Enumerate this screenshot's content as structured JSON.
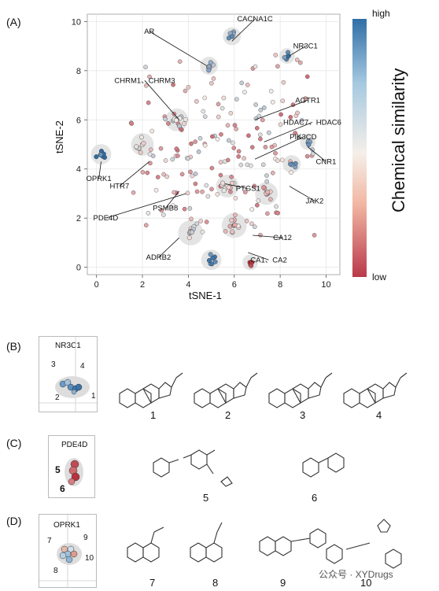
{
  "panels": {
    "a": "(A)",
    "b": "(B)",
    "c": "(C)",
    "d": "(D)"
  },
  "colors": {
    "low": "#b2182b",
    "mid": "#f7f7f7",
    "high": "#2166ac",
    "cluster_bg": "#d9d9d9",
    "grid": "#e6e6e6"
  },
  "chart_data": {
    "type": "scatter",
    "xlabel": "tSNE-1",
    "ylabel": "tSNE-2",
    "xlim": [
      -0.4,
      10.6
    ],
    "ylim": [
      -0.3,
      10.3
    ],
    "xticks": [
      "0",
      "2",
      "4",
      "6",
      "8",
      "10"
    ],
    "yticks": [
      "0",
      "2",
      "4",
      "6",
      "8",
      "10"
    ],
    "grid": true,
    "colorbar": {
      "title": "Chemical similarity",
      "high_label": "high",
      "low_label": "low"
    },
    "target_labels": [
      {
        "label": "CACNA1C",
        "x": 6.9,
        "y": 10.1,
        "px": 5.9,
        "py": 9.2
      },
      {
        "label": "AR",
        "x": 2.3,
        "y": 9.6,
        "px": 4.8,
        "py": 8.2
      },
      {
        "label": "NR3C1",
        "x": 9.1,
        "y": 9.0,
        "px": 8.4,
        "py": 8.6
      },
      {
        "label": "CHRM1、CHRM3",
        "x": 2.1,
        "y": 7.6,
        "px": 3.6,
        "py": 6.0
      },
      {
        "label": "AGTR1",
        "x": 9.2,
        "y": 6.8,
        "px": 6.9,
        "py": 6.0
      },
      {
        "label": "HDAC7、HDAC6",
        "x": 9.4,
        "y": 5.9,
        "px": 7.3,
        "py": 5.1
      },
      {
        "label": "PIK3CD",
        "x": 9.0,
        "y": 5.3,
        "px": 6.9,
        "py": 4.4
      },
      {
        "label": "CNR1",
        "x": 10.0,
        "y": 4.3,
        "px": 9.2,
        "py": 4.9
      },
      {
        "label": "OPRK1",
        "x": 0.1,
        "y": 3.6,
        "px": 0.2,
        "py": 4.3
      },
      {
        "label": "HTR7",
        "x": 1.0,
        "y": 3.3,
        "px": 2.3,
        "py": 4.3
      },
      {
        "label": "PTGS1",
        "x": 6.6,
        "y": 3.2,
        "px": 5.6,
        "py": 3.4
      },
      {
        "label": "PSMB8",
        "x": 3.0,
        "y": 2.4,
        "px": 3.6,
        "py": 3.1
      },
      {
        "label": "JAK2",
        "x": 9.5,
        "y": 2.7,
        "px": 8.4,
        "py": 3.3
      },
      {
        "label": "PDE4D",
        "x": 0.4,
        "y": 2.0,
        "px": 3.9,
        "py": 3.0
      },
      {
        "label": "CA12",
        "x": 8.1,
        "y": 1.2,
        "px": 6.8,
        "py": 1.3
      },
      {
        "label": "ADRB2",
        "x": 2.7,
        "y": 0.4,
        "px": 3.6,
        "py": 1.2
      },
      {
        "label": "CA1、CA2",
        "x": 7.5,
        "y": 0.3,
        "px": 6.6,
        "py": 0.6
      }
    ],
    "clusters": [
      {
        "x": 0.2,
        "y": 4.6,
        "r": 0.25,
        "c": 0.95,
        "n": 8
      },
      {
        "x": 5.9,
        "y": 9.4,
        "r": 0.2,
        "c": 0.85,
        "n": 6
      },
      {
        "x": 8.3,
        "y": 8.6,
        "r": 0.15,
        "c": 0.9,
        "n": 5
      },
      {
        "x": 4.9,
        "y": 8.2,
        "r": 0.2,
        "c": 0.7,
        "n": 6
      },
      {
        "x": 3.5,
        "y": 6.0,
        "r": 0.3,
        "c": 0.6,
        "n": 8
      },
      {
        "x": 9.2,
        "y": 5.1,
        "r": 0.15,
        "c": 0.85,
        "n": 4
      },
      {
        "x": 8.5,
        "y": 4.2,
        "r": 0.2,
        "c": 0.8,
        "n": 5
      },
      {
        "x": 5.0,
        "y": 0.3,
        "r": 0.25,
        "c": 0.9,
        "n": 7
      },
      {
        "x": 4.1,
        "y": 1.4,
        "r": 0.35,
        "c": 0.55,
        "n": 10
      },
      {
        "x": 6.0,
        "y": 1.7,
        "r": 0.35,
        "c": 0.4,
        "n": 10
      },
      {
        "x": 6.7,
        "y": 0.2,
        "r": 0.15,
        "c": 0.1,
        "n": 4
      },
      {
        "x": 5.7,
        "y": 3.3,
        "r": 0.3,
        "c": 0.45,
        "n": 9
      },
      {
        "x": 2.0,
        "y": 5.0,
        "r": 0.3,
        "c": 0.5,
        "n": 8
      },
      {
        "x": 7.4,
        "y": 3.0,
        "r": 0.3,
        "c": 0.35,
        "n": 8
      }
    ]
  },
  "subpanel_b": {
    "target": "NR3C1",
    "point_labels": [
      "3",
      "4",
      "2",
      "1"
    ],
    "molecules": [
      "1",
      "2",
      "3",
      "4"
    ]
  },
  "subpanel_c": {
    "target": "PDE4D",
    "point_labels": [
      "5",
      "6"
    ],
    "molecules": [
      "5",
      "6"
    ]
  },
  "subpanel_d": {
    "target": "OPRK1",
    "point_labels": [
      "7",
      "9",
      "8",
      "10"
    ],
    "molecules": [
      "7",
      "8",
      "9",
      "10"
    ]
  },
  "watermark": "公众号 · XYDrugs"
}
